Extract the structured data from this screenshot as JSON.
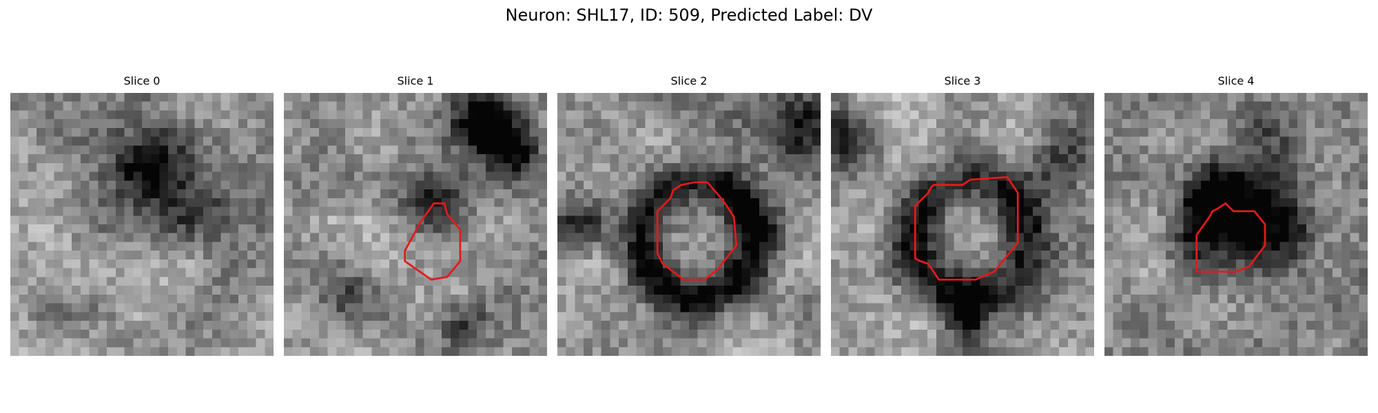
{
  "figure": {
    "title": "Neuron: SHL17, ID: 509, Predicted Label: DV"
  },
  "panels": [
    {
      "title": "Slice 0",
      "seed": 11,
      "blobs": [
        [
          0.52,
          0.26,
          0.1,
          0.55
        ],
        [
          0.62,
          0.4,
          0.12,
          0.25
        ],
        [
          0.8,
          0.45,
          0.1,
          0.15
        ]
      ],
      "contour": []
    },
    {
      "title": "Slice 1",
      "seed": 23,
      "blobs": [
        [
          0.76,
          0.1,
          0.09,
          0.75
        ],
        [
          0.55,
          0.42,
          0.08,
          0.5
        ],
        [
          0.88,
          0.22,
          0.07,
          0.45
        ],
        [
          0.68,
          0.88,
          0.06,
          0.45
        ],
        [
          0.25,
          0.75,
          0.07,
          0.25
        ]
      ],
      "contour": [
        [
          0.46,
          0.6
        ],
        [
          0.52,
          0.49
        ],
        [
          0.57,
          0.42
        ],
        [
          0.61,
          0.42
        ],
        [
          0.62,
          0.46
        ],
        [
          0.67,
          0.52
        ],
        [
          0.67,
          0.64
        ],
        [
          0.62,
          0.7
        ],
        [
          0.56,
          0.71
        ],
        [
          0.46,
          0.64
        ]
      ]
    },
    {
      "title": "Slice 2",
      "seed": 37,
      "blobs": [
        [
          0.08,
          0.49,
          0.07,
          0.35
        ],
        [
          0.9,
          0.13,
          0.1,
          0.45
        ],
        [
          0.7,
          0.5,
          0.05,
          0.25
        ]
      ],
      "ring": [
        0.54,
        0.56,
        0.22,
        0.06,
        0.55
      ],
      "contour": [
        [
          0.38,
          0.45
        ],
        [
          0.43,
          0.4
        ],
        [
          0.44,
          0.37
        ],
        [
          0.47,
          0.35
        ],
        [
          0.52,
          0.34
        ],
        [
          0.57,
          0.34
        ],
        [
          0.63,
          0.41
        ],
        [
          0.67,
          0.47
        ],
        [
          0.68,
          0.58
        ],
        [
          0.61,
          0.67
        ],
        [
          0.56,
          0.71
        ],
        [
          0.48,
          0.71
        ],
        [
          0.4,
          0.65
        ],
        [
          0.38,
          0.61
        ]
      ]
    },
    {
      "title": "Slice 3",
      "seed": 41,
      "blobs": [
        [
          0.04,
          0.18,
          0.08,
          0.4
        ],
        [
          0.92,
          0.22,
          0.09,
          0.4
        ],
        [
          0.52,
          0.88,
          0.06,
          0.4
        ],
        [
          0.51,
          0.78,
          0.05,
          0.35
        ]
      ],
      "ring": [
        0.53,
        0.55,
        0.22,
        0.07,
        0.5
      ],
      "contour": [
        [
          0.32,
          0.43
        ],
        [
          0.37,
          0.38
        ],
        [
          0.38,
          0.36
        ],
        [
          0.39,
          0.35
        ],
        [
          0.5,
          0.35
        ],
        [
          0.53,
          0.33
        ],
        [
          0.67,
          0.32
        ],
        [
          0.71,
          0.38
        ],
        [
          0.71,
          0.57
        ],
        [
          0.62,
          0.68
        ],
        [
          0.55,
          0.71
        ],
        [
          0.41,
          0.71
        ],
        [
          0.37,
          0.65
        ],
        [
          0.34,
          0.64
        ],
        [
          0.32,
          0.63
        ]
      ]
    },
    {
      "title": "Slice 4",
      "seed": 53,
      "blobs": [
        [
          0.41,
          0.39,
          0.08,
          0.6
        ],
        [
          0.56,
          0.46,
          0.15,
          0.45
        ],
        [
          0.68,
          0.53,
          0.08,
          0.35
        ],
        [
          0.58,
          0.1,
          0.07,
          0.3
        ],
        [
          0.35,
          0.58,
          0.08,
          0.25
        ]
      ],
      "contour": [
        [
          0.35,
          0.54
        ],
        [
          0.4,
          0.47
        ],
        [
          0.41,
          0.45
        ],
        [
          0.43,
          0.44
        ],
        [
          0.46,
          0.42
        ],
        [
          0.49,
          0.45
        ],
        [
          0.57,
          0.45
        ],
        [
          0.61,
          0.5
        ],
        [
          0.61,
          0.58
        ],
        [
          0.55,
          0.66
        ],
        [
          0.5,
          0.68
        ],
        [
          0.35,
          0.68
        ]
      ]
    }
  ]
}
